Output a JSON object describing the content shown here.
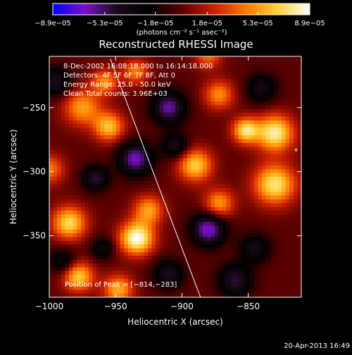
{
  "chart_data": {
    "type": "heatmap",
    "title": "Reconstructed RHESSI Image",
    "xlabel": "Heliocentric X (arcsec)",
    "ylabel": "Heliocentric Y (arcsec)",
    "xlim": [
      -1000,
      -810
    ],
    "ylim": [
      -398,
      -210
    ],
    "x_ticks": [
      {
        "value": -1000,
        "label": "−1000"
      },
      {
        "value": -950,
        "label": "−950"
      },
      {
        "value": -900,
        "label": "−900"
      },
      {
        "value": -850,
        "label": "−850"
      }
    ],
    "y_ticks": [
      {
        "value": -250,
        "label": "−250"
      },
      {
        "value": -300,
        "label": "−300"
      },
      {
        "value": -350,
        "label": "−350"
      }
    ],
    "colorbar": {
      "label": "(photons cm⁻² s⁻¹ asec⁻²)",
      "min": -8.9e-05,
      "max": 8.9e-05,
      "ticks": [
        {
          "value": -8.9e-05,
          "label": "−8.9e−05"
        },
        {
          "value": -5.3e-05,
          "label": "−5.3e−05"
        },
        {
          "value": -1.8e-05,
          "label": "−1.8e−05"
        },
        {
          "value": 1.8e-05,
          "label": "1.8e−05"
        },
        {
          "value": 5.3e-05,
          "label": "5.3e−05"
        },
        {
          "value": 8.9e-05,
          "label": "8.9e−05"
        }
      ],
      "colormap": [
        "#0000ff",
        "#7a10c8",
        "#1a0a1a",
        "#000000",
        "#5a0000",
        "#c81e00",
        "#ff7800",
        "#ffd23c",
        "#ffffff"
      ]
    },
    "info_lines": [
      "8-Dec-2002 16:08:18.000 to 16:14:18.000",
      "Detectors: 4F 5F 6F 7F 8F, Att 0",
      "Energy Range: 25.0 - 50.0 keV",
      "Clean    Total counts: 3.96E+03"
    ],
    "peak_label": "Position of Peak = [−814,−283]",
    "peak": [
      -814,
      -283
    ],
    "limb_line": {
      "x": [
        -954,
        -886
      ],
      "y": [
        -212,
        -398
      ]
    },
    "footer_date": "20-Apr-2013 16:49",
    "sources": [
      {
        "x": -934,
        "y": -352,
        "amp": 1.0,
        "s": 9
      },
      {
        "x": -830,
        "y": -270,
        "amp": 0.9,
        "s": 10
      },
      {
        "x": -830,
        "y": -310,
        "amp": 0.85,
        "s": 11
      },
      {
        "x": -985,
        "y": -340,
        "amp": 0.8,
        "s": 9
      },
      {
        "x": -978,
        "y": -382,
        "amp": 0.75,
        "s": 8
      },
      {
        "x": -975,
        "y": -250,
        "amp": 0.6,
        "s": 10
      },
      {
        "x": -955,
        "y": -265,
        "amp": 0.7,
        "s": 8
      },
      {
        "x": -958,
        "y": -230,
        "amp": 0.55,
        "s": 7
      },
      {
        "x": -935,
        "y": -222,
        "amp": 0.5,
        "s": 7
      },
      {
        "x": -890,
        "y": -295,
        "amp": 0.75,
        "s": 9
      },
      {
        "x": -872,
        "y": -325,
        "amp": 0.6,
        "s": 8
      },
      {
        "x": -872,
        "y": -240,
        "amp": 0.55,
        "s": 8
      },
      {
        "x": -925,
        "y": -330,
        "amp": 0.6,
        "s": 8
      },
      {
        "x": -948,
        "y": -392,
        "amp": 0.65,
        "s": 8
      },
      {
        "x": -852,
        "y": -268,
        "amp": 0.8,
        "s": 7
      },
      {
        "x": -880,
        "y": -210,
        "amp": 0.45,
        "s": 7
      },
      {
        "x": -1000,
        "y": -298,
        "amp": 0.5,
        "s": 8
      },
      {
        "x": -935,
        "y": -290,
        "amp": -0.75,
        "s": 9
      },
      {
        "x": -910,
        "y": -250,
        "amp": -0.7,
        "s": 9
      },
      {
        "x": -880,
        "y": -345,
        "amp": -0.8,
        "s": 9
      },
      {
        "x": -965,
        "y": -305,
        "amp": -0.55,
        "s": 7
      },
      {
        "x": -995,
        "y": -230,
        "amp": -0.5,
        "s": 8
      },
      {
        "x": -860,
        "y": -385,
        "amp": -0.55,
        "s": 9
      },
      {
        "x": -990,
        "y": -370,
        "amp": -0.4,
        "s": 7
      },
      {
        "x": -905,
        "y": -280,
        "amp": -0.5,
        "s": 7
      },
      {
        "x": -840,
        "y": -235,
        "amp": -0.45,
        "s": 8
      },
      {
        "x": -845,
        "y": -360,
        "amp": -0.45,
        "s": 8
      },
      {
        "x": -910,
        "y": -380,
        "amp": -0.5,
        "s": 8
      },
      {
        "x": -960,
        "y": -360,
        "amp": -0.4,
        "s": 6
      }
    ]
  }
}
